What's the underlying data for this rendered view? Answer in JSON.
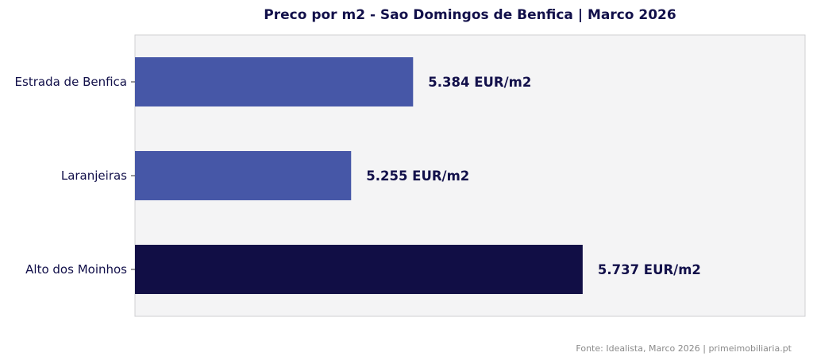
{
  "chart_data": {
    "type": "bar",
    "orientation": "horizontal",
    "title": "Preco por m2 - Sao Domingos de Benfica | Marco 2026",
    "categories": [
      "Estrada de Benfica",
      "Laranjeiras",
      "Alto dos Moinhos"
    ],
    "values": [
      5384,
      5255,
      5737
    ],
    "data_labels": [
      "5.384 EUR/m2",
      "5.255 EUR/m2",
      "5.737 EUR/m2"
    ],
    "bar_colors": [
      "#4657a7",
      "#4657a7",
      "#110e45"
    ],
    "xlim": [
      4805,
      6200
    ],
    "xlabel": "",
    "ylabel": "",
    "grid": false,
    "x_ticks_visible": false,
    "plot_background": "#f4f4f5",
    "label_color": "#12104a"
  },
  "footer": {
    "source": "Fonte: Idealista, Marco 2026 | primeimobiliaria.pt"
  }
}
